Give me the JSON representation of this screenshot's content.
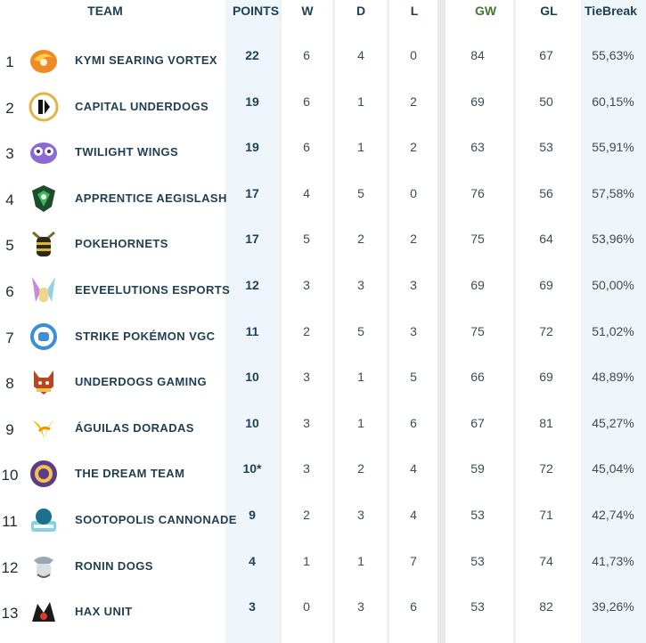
{
  "columns": {
    "team": "TEAM",
    "points": "POINTS",
    "w": "W",
    "d": "D",
    "l": "L",
    "gw": "GW",
    "gl": "GL",
    "tiebreak": "TieBreak"
  },
  "colors": {
    "header_text": "#1c3f55",
    "gw_header": "#3f7a2c",
    "points_stripe": "#eef5fb",
    "tiebreak_stripe": "#eff6f9",
    "divider_stripe": "#f1f1f1"
  },
  "teams": [
    {
      "rank": "1",
      "name": "KYMI SEARING VORTEX",
      "icon": "vortex-flame-icon",
      "points": "22",
      "w": "6",
      "d": "4",
      "l": "0",
      "gw": "84",
      "gl": "67",
      "tiebreak": "55,63%"
    },
    {
      "rank": "2",
      "name": "CAPITAL UNDERDOGS",
      "icon": "capital-underdogs-crest-icon",
      "points": "19",
      "w": "6",
      "d": "1",
      "l": "2",
      "gw": "69",
      "gl": "50",
      "tiebreak": "60,15%"
    },
    {
      "rank": "3",
      "name": "TWILIGHT WINGS",
      "icon": "twilight-owl-icon",
      "points": "19",
      "w": "6",
      "d": "1",
      "l": "2",
      "gw": "63",
      "gl": "53",
      "tiebreak": "55,91%"
    },
    {
      "rank": "4",
      "name": "APPRENTICE AEGISLASH",
      "icon": "aegislash-shield-icon",
      "points": "17",
      "w": "4",
      "d": "5",
      "l": "0",
      "gw": "76",
      "gl": "56",
      "tiebreak": "57,58%"
    },
    {
      "rank": "5",
      "name": "POKEHORNETS",
      "icon": "hornet-icon",
      "points": "17",
      "w": "5",
      "d": "2",
      "l": "2",
      "gw": "75",
      "gl": "64",
      "tiebreak": "53,96%"
    },
    {
      "rank": "6",
      "name": "EEVEELUTIONS ESPORTS",
      "icon": "eevee-ears-icon",
      "points": "12",
      "w": "3",
      "d": "3",
      "l": "3",
      "gw": "69",
      "gl": "69",
      "tiebreak": "50,00%"
    },
    {
      "rank": "7",
      "name": "STRIKE POKÉMON VGC",
      "icon": "strike-fist-icon",
      "points": "11",
      "w": "2",
      "d": "5",
      "l": "3",
      "gw": "75",
      "gl": "72",
      "tiebreak": "51,02%"
    },
    {
      "rank": "8",
      "name": "UNDERDOGS GAMING",
      "icon": "underdogs-dog-icon",
      "points": "10",
      "w": "3",
      "d": "1",
      "l": "5",
      "gw": "66",
      "gl": "69",
      "tiebreak": "48,89%"
    },
    {
      "rank": "9",
      "name": "ÁGUILAS DORADAS",
      "icon": "golden-eagle-icon",
      "points": "10",
      "w": "3",
      "d": "1",
      "l": "6",
      "gw": "67",
      "gl": "81",
      "tiebreak": "45,27%"
    },
    {
      "rank": "10",
      "name": "THE DREAM TEAM",
      "icon": "dream-team-badge-icon",
      "points": "10*",
      "w": "3",
      "d": "2",
      "l": "4",
      "gw": "59",
      "gl": "72",
      "tiebreak": "45,04%"
    },
    {
      "rank": "11",
      "name": "SOOTOPOLIS CANNONADE",
      "icon": "sootopolis-icon",
      "points": "9",
      "w": "2",
      "d": "3",
      "l": "4",
      "gw": "53",
      "gl": "71",
      "tiebreak": "42,74%"
    },
    {
      "rank": "12",
      "name": "RONIN DOGS",
      "icon": "ronin-dog-icon",
      "points": "4",
      "w": "1",
      "d": "1",
      "l": "7",
      "gw": "53",
      "gl": "74",
      "tiebreak": "41,73%"
    },
    {
      "rank": "13",
      "name": "HAX UNIT",
      "icon": "hax-unit-icon",
      "points": "3",
      "w": "0",
      "d": "3",
      "l": "6",
      "gw": "53",
      "gl": "82",
      "tiebreak": "39,26%"
    }
  ]
}
